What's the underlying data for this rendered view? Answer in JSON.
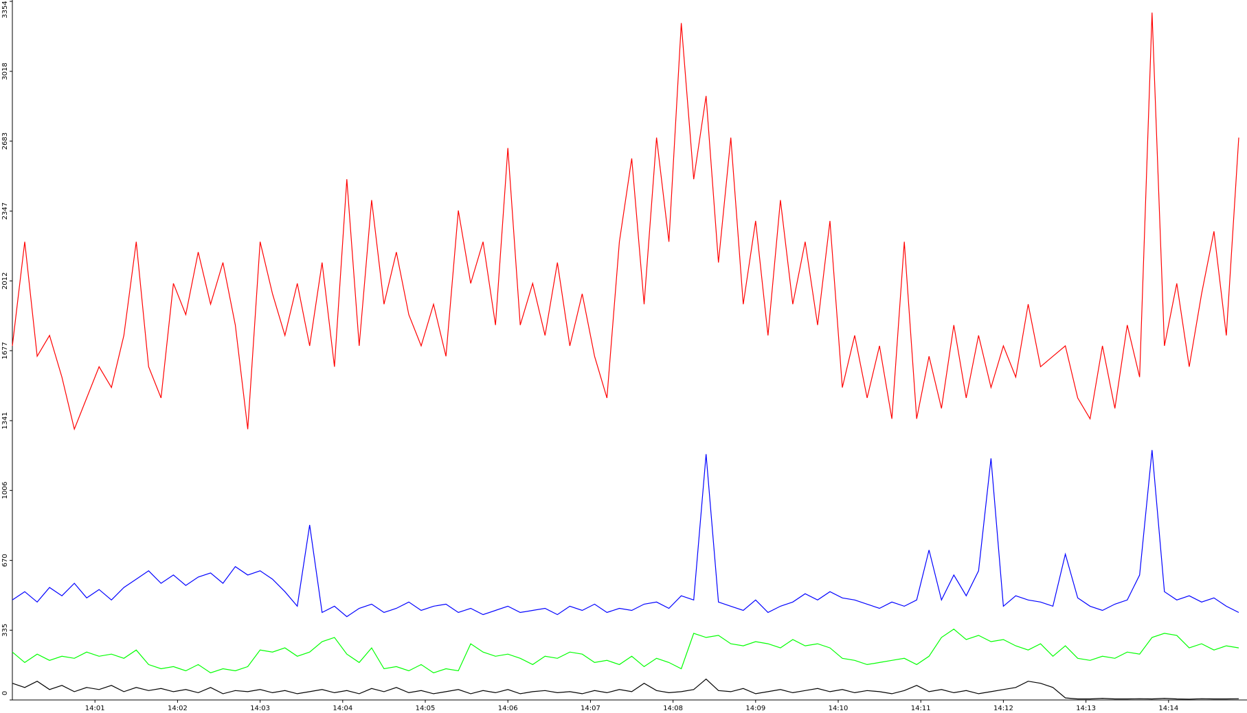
{
  "chart_data": {
    "type": "line",
    "x": [
      0,
      0.15,
      0.3,
      0.45,
      0.6,
      0.75,
      0.9,
      1.05,
      1.2,
      1.35,
      1.5,
      1.65,
      1.8,
      1.95,
      2.1,
      2.25,
      2.4,
      2.55,
      2.7,
      2.85,
      3,
      3.15,
      3.3,
      3.45,
      3.6,
      3.75,
      3.9,
      4.05,
      4.2,
      4.35,
      4.5,
      4.65,
      4.8,
      4.95,
      5.1,
      5.25,
      5.4,
      5.55,
      5.7,
      5.85,
      6,
      6.15,
      6.3,
      6.45,
      6.6,
      6.75,
      6.9,
      7.05,
      7.2,
      7.35,
      7.5,
      7.65,
      7.8,
      7.95,
      8.1,
      8.25,
      8.4,
      8.55,
      8.7,
      8.85,
      9,
      9.15,
      9.3,
      9.45,
      9.6,
      9.75,
      9.9,
      10.05,
      10.2,
      10.35,
      10.5,
      10.65,
      10.8,
      10.95,
      11.1,
      11.25,
      11.4,
      11.55,
      11.7,
      11.85,
      12,
      12.15,
      12.3,
      12.45,
      12.6,
      12.75,
      12.9,
      13.05,
      13.2,
      13.35,
      13.5,
      13.65,
      13.8,
      13.95,
      14.1,
      14.25,
      14.4,
      14.55,
      14.7,
      14.85
    ],
    "series": [
      {
        "color": "#ff0000",
        "values": [
          1700,
          2200,
          1650,
          1750,
          1550,
          1300,
          1450,
          1600,
          1500,
          1750,
          2200,
          1600,
          1450,
          2000,
          1850,
          2150,
          1900,
          2100,
          1800,
          1300,
          2200,
          1950,
          1750,
          2000,
          1700,
          2100,
          1600,
          2500,
          1700,
          2400,
          1900,
          2150,
          1850,
          1700,
          1900,
          1650,
          2350,
          2000,
          2200,
          1800,
          2650,
          1800,
          2000,
          1750,
          2100,
          1700,
          1950,
          1650,
          1450,
          2200,
          2600,
          1900,
          2700,
          2200,
          3250,
          2500,
          2900,
          2100,
          2700,
          1900,
          2300,
          1750,
          2400,
          1900,
          2200,
          1800,
          2300,
          1500,
          1750,
          1450,
          1700,
          1350,
          2200,
          1350,
          1650,
          1400,
          1800,
          1450,
          1750,
          1500,
          1700,
          1550,
          1900,
          1600,
          1650,
          1700,
          1450,
          1350,
          1700,
          1400,
          1800,
          1550,
          3300,
          1700,
          2000,
          1600,
          1950,
          2250,
          1750,
          2700
        ]
      },
      {
        "color": "#0000ff",
        "values": [
          480,
          520,
          470,
          540,
          500,
          560,
          490,
          530,
          480,
          540,
          580,
          620,
          560,
          600,
          550,
          590,
          610,
          560,
          640,
          600,
          620,
          580,
          520,
          450,
          840,
          420,
          450,
          400,
          440,
          460,
          420,
          440,
          470,
          430,
          450,
          460,
          420,
          440,
          410,
          430,
          450,
          420,
          430,
          440,
          410,
          450,
          430,
          460,
          420,
          440,
          430,
          460,
          470,
          440,
          500,
          480,
          1180,
          470,
          450,
          430,
          480,
          420,
          450,
          470,
          510,
          480,
          520,
          490,
          480,
          460,
          440,
          470,
          450,
          480,
          720,
          480,
          600,
          500,
          620,
          1160,
          450,
          500,
          480,
          470,
          450,
          700,
          490,
          450,
          430,
          460,
          480,
          600,
          1200,
          520,
          480,
          500,
          470,
          490,
          450,
          420
        ]
      },
      {
        "color": "#00ff00",
        "values": [
          230,
          180,
          220,
          190,
          210,
          200,
          230,
          210,
          220,
          200,
          240,
          170,
          150,
          160,
          140,
          170,
          130,
          150,
          140,
          160,
          240,
          230,
          250,
          210,
          230,
          280,
          300,
          220,
          180,
          250,
          150,
          160,
          140,
          170,
          130,
          150,
          140,
          270,
          230,
          210,
          220,
          200,
          170,
          210,
          200,
          230,
          220,
          180,
          190,
          170,
          210,
          160,
          200,
          180,
          150,
          320,
          300,
          310,
          270,
          260,
          280,
          270,
          250,
          290,
          260,
          270,
          250,
          200,
          190,
          170,
          180,
          190,
          200,
          170,
          210,
          300,
          340,
          290,
          310,
          280,
          290,
          260,
          240,
          270,
          210,
          260,
          200,
          190,
          210,
          200,
          230,
          220,
          300,
          320,
          310,
          250,
          270,
          240,
          260,
          250
        ]
      },
      {
        "color": "#000000",
        "values": [
          80,
          60,
          90,
          50,
          70,
          40,
          60,
          50,
          70,
          40,
          60,
          45,
          55,
          40,
          50,
          35,
          60,
          30,
          45,
          40,
          50,
          35,
          45,
          30,
          40,
          50,
          35,
          45,
          30,
          55,
          40,
          60,
          35,
          45,
          30,
          40,
          50,
          30,
          45,
          35,
          50,
          30,
          40,
          45,
          35,
          40,
          30,
          45,
          35,
          50,
          40,
          80,
          45,
          35,
          40,
          50,
          100,
          45,
          40,
          55,
          30,
          40,
          50,
          35,
          45,
          55,
          40,
          50,
          35,
          45,
          40,
          30,
          45,
          70,
          40,
          50,
          35,
          45,
          30,
          40,
          50,
          60,
          90,
          80,
          60,
          10,
          5,
          5,
          8,
          5,
          5,
          6,
          5,
          8,
          5,
          4,
          6,
          5,
          5,
          6
        ]
      }
    ],
    "xlim": [
      0,
      14.95
    ],
    "xticks": [
      {
        "value": 1,
        "label": "14:01"
      },
      {
        "value": 2,
        "label": "14:02"
      },
      {
        "value": 3,
        "label": "14:03"
      },
      {
        "value": 4,
        "label": "14:04"
      },
      {
        "value": 5,
        "label": "14:05"
      },
      {
        "value": 6,
        "label": "14:06"
      },
      {
        "value": 7,
        "label": "14:07"
      },
      {
        "value": 8,
        "label": "14:08"
      },
      {
        "value": 9,
        "label": "14:09"
      },
      {
        "value": 10,
        "label": "14:10"
      },
      {
        "value": 11,
        "label": "14:11"
      },
      {
        "value": 12,
        "label": "14:12"
      },
      {
        "value": 13,
        "label": "14:13"
      },
      {
        "value": 14,
        "label": "14:14"
      }
    ],
    "ylim": [
      0,
      3354
    ],
    "yticks": [
      0,
      335,
      670,
      1006,
      1341,
      1677,
      2012,
      2347,
      2683,
      3018,
      3354
    ]
  }
}
